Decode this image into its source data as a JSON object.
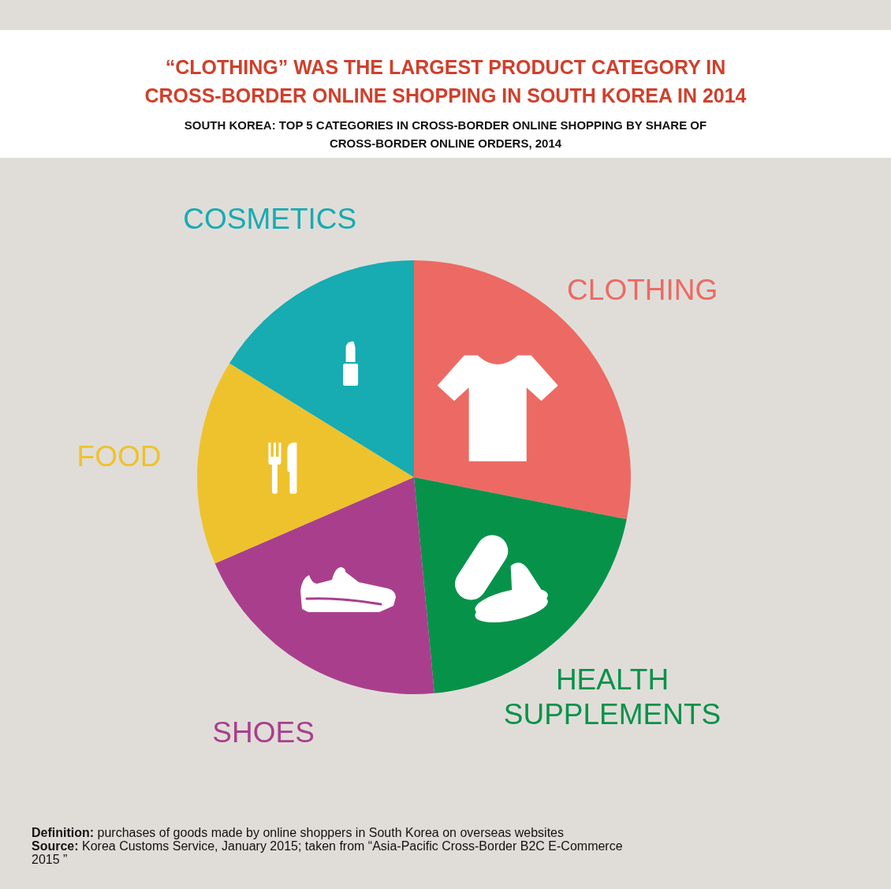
{
  "chart_data": {
    "type": "pie",
    "title": "“CLOTHING” WAS THE LARGEST PRODUCT CATEGORY IN CROSS-BORDER ONLINE SHOPPING IN SOUTH KOREA IN 2014",
    "subtitle": "SOUTH KOREA: TOP 5 CATEGORIES IN CROSS-BORDER ONLINE SHOPPING BY SHARE OF CROSS-BORDER ONLINE ORDERS, 2014",
    "categories": [
      "CLOTHING",
      "HEALTH SUPPLEMENTS",
      "SHOES",
      "FOOD",
      "COSMETICS"
    ],
    "values": [
      28.1,
      20.4,
      20.0,
      15.3,
      16.2
    ],
    "colors": [
      "#ec6a63",
      "#07924a",
      "#a93f8c",
      "#eec22d",
      "#17abb2"
    ],
    "annotations": [
      "Definition: purchases of goods made by online shoppers in South Korea on overseas websites",
      "Source: Korea Customs Service, January 2015; taken from “Asia-Pacific Cross-Border B2C E-Commerce 2015 ”"
    ]
  }
}
